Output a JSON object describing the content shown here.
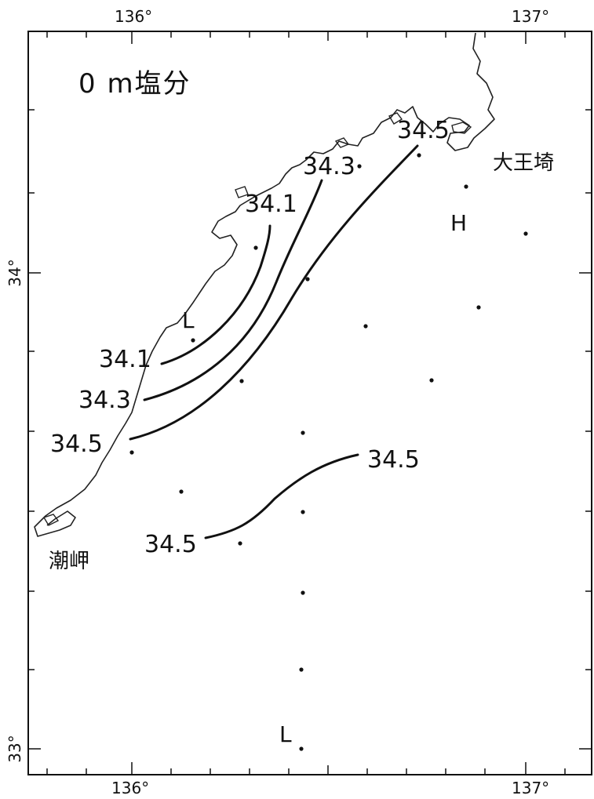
{
  "map": {
    "title": "0 m塩分",
    "top_ticks": [
      "136°",
      "137°"
    ],
    "bottom_ticks": [
      "136°",
      "137°"
    ],
    "left_ticks": [
      "34°",
      "33°"
    ],
    "contour_labels": [
      "34.5",
      "34.3",
      "34.1",
      "34.1",
      "34.3",
      "34.5",
      "34.5",
      "34.5"
    ],
    "place_names": {
      "daiozaki": "大王埼",
      "shionomisaki": "潮岬"
    },
    "pressure_marks": {
      "high": "H",
      "low_north": "L",
      "low_south": "L"
    }
  }
}
